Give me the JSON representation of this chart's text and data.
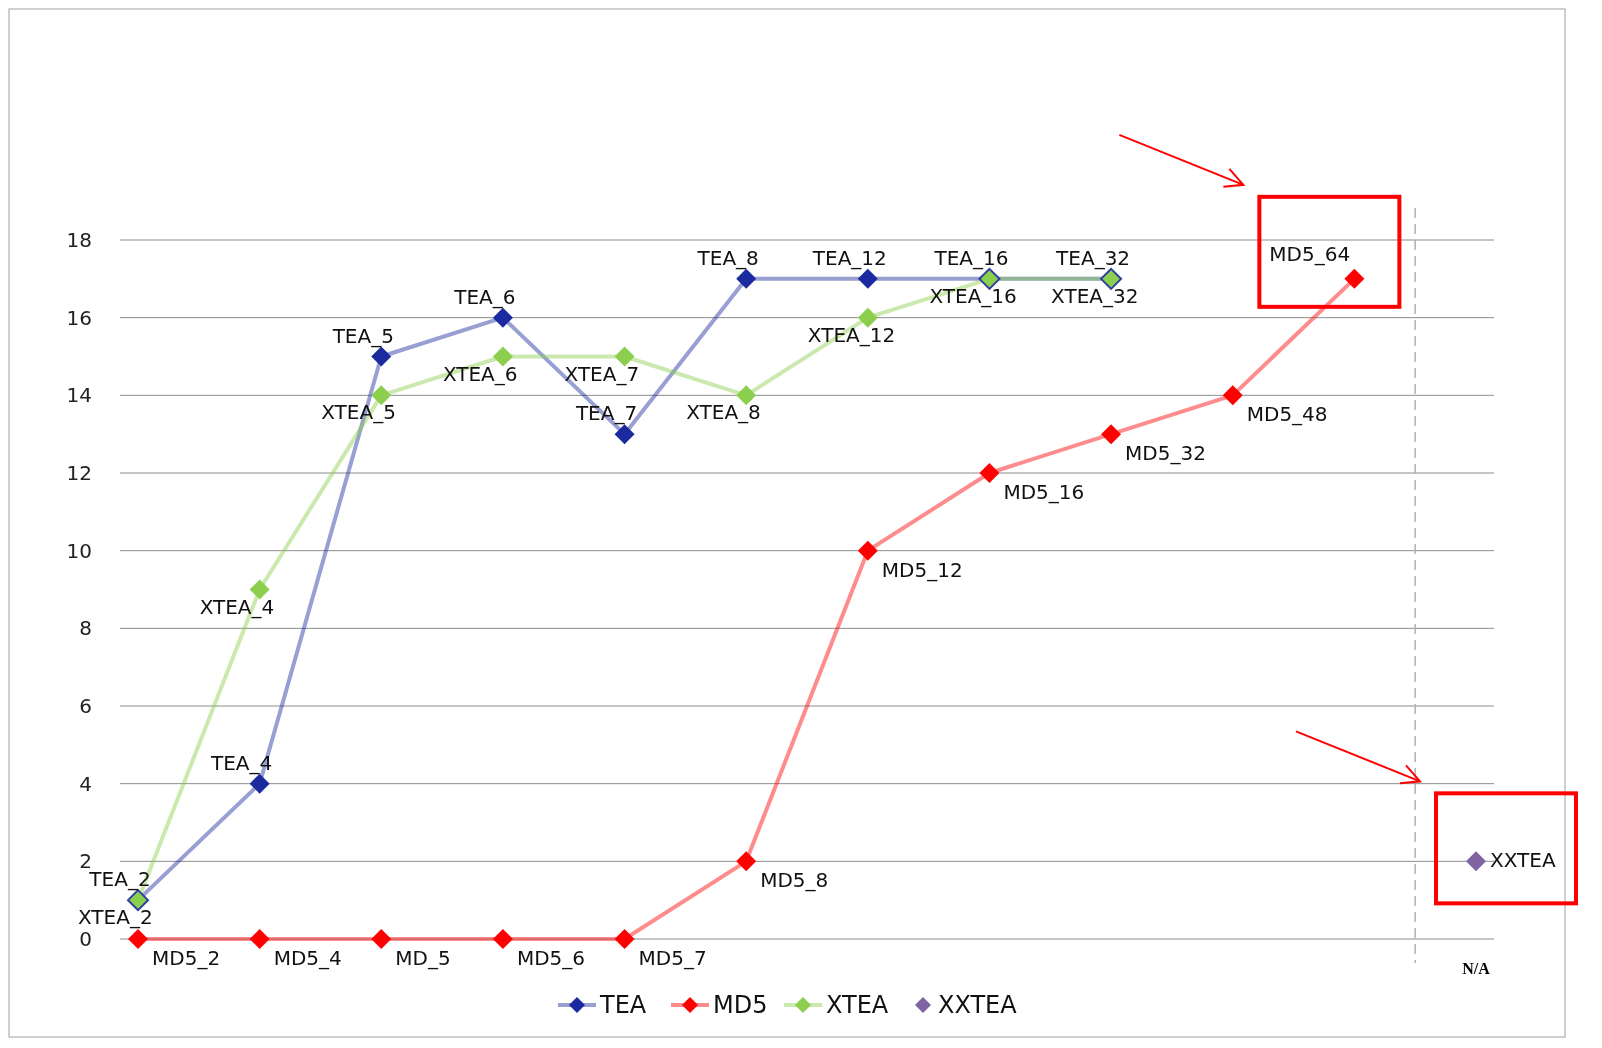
{
  "chart_data": {
    "type": "line",
    "categories": [
      null,
      null,
      null,
      null,
      null,
      null,
      null,
      null,
      null,
      null,
      null,
      "N/A"
    ],
    "ylim": [
      0,
      18
    ],
    "yticks": [
      0,
      2,
      4,
      6,
      8,
      10,
      12,
      14,
      16,
      18
    ],
    "grid": "y",
    "legend": "bottom",
    "marker": "diamond",
    "series": [
      {
        "name": "TEA",
        "color": "#1b2a9e",
        "values": [
          1,
          4,
          15,
          16,
          13,
          17,
          17,
          17,
          17,
          null,
          null,
          null
        ]
      },
      {
        "name": "MD5",
        "color": "#ff0000",
        "values": [
          0,
          0,
          0,
          0,
          0,
          2,
          10,
          12,
          13,
          14,
          17,
          null
        ]
      },
      {
        "name": "XTEA",
        "color": "#8ccf4e",
        "values": [
          1,
          9,
          14,
          15,
          15,
          14,
          16,
          17,
          17,
          null,
          null,
          null
        ]
      },
      {
        "name": "XXTEA",
        "type": "scatter",
        "color": "#8064a2",
        "values": [
          null,
          null,
          null,
          null,
          null,
          null,
          null,
          null,
          null,
          null,
          null,
          2
        ]
      }
    ],
    "annotations": [
      "TEA_2",
      "TEA_4",
      "TEA_5",
      "TEA_6",
      "TEA_7",
      "TEA_8",
      "TEA_12",
      "TEA_16",
      "TEA_32",
      "MD5_2",
      "MD5_4",
      "MD_5",
      "MD5_6",
      "MD5_7",
      "MD5_8",
      "MD5_12",
      "MD5_16",
      "MD5_32",
      "MD5_48",
      "MD5_64",
      "XTEA_2",
      "XTEA_4",
      "XTEA_5",
      "XTEA_6",
      "XTEA_7",
      "XTEA_8",
      "XTEA_12",
      "XTEA_16",
      "XTEA_32",
      "XXTEA"
    ]
  }
}
